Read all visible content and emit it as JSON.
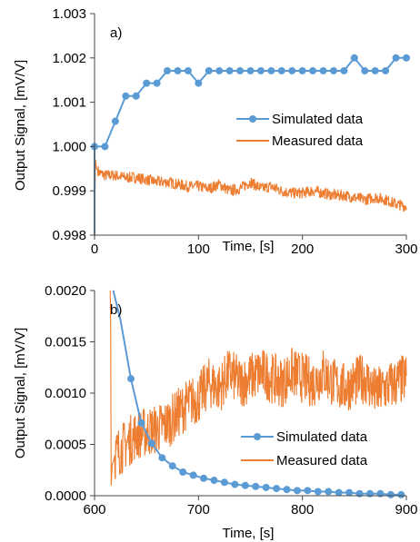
{
  "colors": {
    "simulated": "#5b9bd5",
    "measured": "#ed7d31",
    "axis": "#000000"
  },
  "chart_data": [
    {
      "type": "line",
      "panel_label": "a)",
      "xlabel": "Time, [s]",
      "ylabel": "Output Signal, [mV/V]",
      "xlim": [
        0,
        300
      ],
      "ylim": [
        0.998,
        1.003
      ],
      "x_ticks": [
        "0",
        "100",
        "200",
        "300"
      ],
      "y_ticks": [
        "0.998",
        "0.999",
        "1.000",
        "1.001",
        "1.002",
        "1.003"
      ],
      "legend": "right",
      "grid": false,
      "series": [
        {
          "name": "Simulated data",
          "x": [
            0,
            10,
            20,
            30,
            40,
            50,
            60,
            70,
            80,
            90,
            100,
            110,
            120,
            130,
            140,
            150,
            160,
            170,
            180,
            190,
            200,
            210,
            220,
            230,
            240,
            250,
            260,
            270,
            280,
            290,
            300
          ],
          "y": [
            1.0,
            1.0,
            1.00057,
            1.00114,
            1.00114,
            1.00143,
            1.00143,
            1.00171,
            1.00171,
            1.00171,
            1.00143,
            1.00171,
            1.00171,
            1.00171,
            1.00171,
            1.00171,
            1.00171,
            1.00171,
            1.00171,
            1.00171,
            1.00171,
            1.00171,
            1.00171,
            1.00171,
            1.00171,
            1.002,
            1.00171,
            1.00171,
            1.00171,
            1.002,
            1.002
          ],
          "markers": [
            10,
            20,
            30,
            40,
            50,
            60,
            70,
            80,
            90,
            100,
            110,
            120,
            130,
            140,
            150,
            160,
            170,
            180,
            190,
            200,
            210,
            220,
            230,
            240,
            250,
            260,
            270,
            280,
            290,
            300
          ]
        },
        {
          "name": "Measured data",
          "x": [
            0,
            1,
            2,
            5,
            10,
            20,
            30,
            40,
            50,
            60,
            70,
            80,
            90,
            100,
            110,
            120,
            130,
            140,
            150,
            160,
            170,
            180,
            190,
            200,
            210,
            220,
            230,
            240,
            250,
            260,
            270,
            280,
            290,
            300
          ],
          "y": [
            0.9985,
            0.9997,
            0.9995,
            0.9994,
            0.99935,
            0.99935,
            0.9993,
            0.9993,
            0.99925,
            0.9992,
            0.9992,
            0.99915,
            0.9991,
            0.9991,
            0.99905,
            0.99915,
            0.999,
            0.99905,
            0.9992,
            0.99905,
            0.9991,
            0.999,
            0.99895,
            0.99895,
            0.999,
            0.99895,
            0.9989,
            0.9989,
            0.99885,
            0.9988,
            0.99885,
            0.9988,
            0.9987,
            0.99865
          ],
          "noise": 0.00013
        }
      ]
    },
    {
      "type": "line",
      "panel_label": "b)",
      "xlabel": "Time, [s]",
      "ylabel": "Output Signal, [mV/V]",
      "xlim": [
        600,
        900
      ],
      "ylim": [
        0,
        0.002
      ],
      "x_ticks": [
        "600",
        "700",
        "800",
        "900"
      ],
      "y_ticks": [
        "0.0000",
        "0.0005",
        "0.0010",
        "0.0015",
        "0.0020"
      ],
      "legend": "right",
      "grid": false,
      "series": [
        {
          "name": "Simulated data",
          "x": [
            618,
            625,
            635,
            645,
            655,
            665,
            675,
            685,
            695,
            705,
            715,
            725,
            735,
            745,
            755,
            765,
            775,
            785,
            795,
            805,
            815,
            825,
            835,
            845,
            855,
            865,
            875,
            885,
            895
          ],
          "y": [
            0.0022,
            0.00171,
            0.00114,
            0.00071,
            0.00051,
            0.00037,
            0.00029,
            0.00023,
            0.0002,
            0.00017,
            0.00015,
            0.00013,
            0.00011,
            0.0001,
            9e-05,
            8e-05,
            7e-05,
            6e-05,
            5e-05,
            5e-05,
            4e-05,
            4e-05,
            3e-05,
            3e-05,
            2e-05,
            2e-05,
            2e-05,
            1e-05,
            1e-05
          ],
          "markers": [
            635,
            645,
            655,
            665,
            675,
            685,
            695,
            705,
            715,
            725,
            735,
            745,
            755,
            765,
            775,
            785,
            795,
            805,
            815,
            825,
            835,
            845,
            855,
            865,
            875,
            885,
            895
          ]
        },
        {
          "name": "Measured data",
          "x": [
            615,
            615.5,
            616,
            617,
            620,
            630,
            640,
            650,
            660,
            670,
            680,
            690,
            700,
            710,
            720,
            730,
            740,
            750,
            760,
            770,
            780,
            790,
            800,
            810,
            820,
            830,
            840,
            850,
            860,
            870,
            880,
            890,
            900
          ],
          "y": [
            0.0022,
            0.0017,
            0.0001,
            0.0003,
            0.0004,
            0.0005,
            0.0006,
            0.00062,
            0.00065,
            0.0007,
            0.0008,
            0.0009,
            0.00095,
            0.0011,
            0.00105,
            0.0012,
            0.0011,
            0.00115,
            0.0012,
            0.00115,
            0.0011,
            0.0012,
            0.00115,
            0.0011,
            0.0012,
            0.0011,
            0.00105,
            0.0011,
            0.00115,
            0.001,
            0.00105,
            0.0011,
            0.00115
          ],
          "noise": 0.00025
        }
      ]
    }
  ]
}
